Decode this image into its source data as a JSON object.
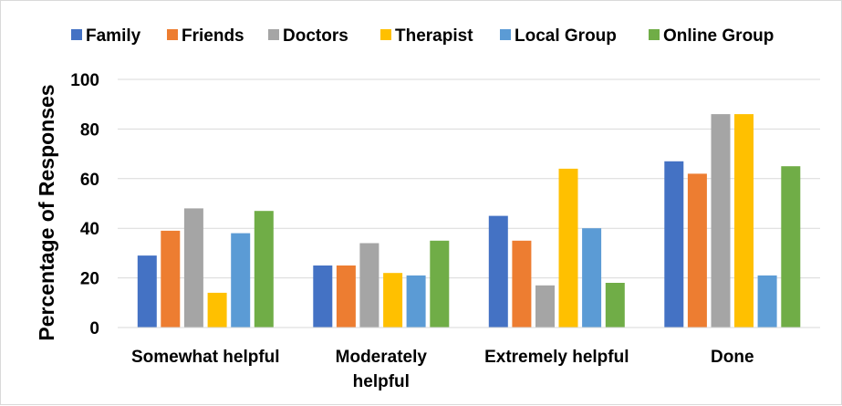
{
  "chart_data": {
    "type": "bar",
    "title": "",
    "xlabel": "",
    "ylabel": "Percentage of Responses",
    "ylim": [
      0,
      100
    ],
    "yticks": [
      "0",
      "20",
      "40",
      "60",
      "80",
      "100"
    ],
    "grid": true,
    "legend_position": "top",
    "categories": [
      [
        "Somewhat helpful"
      ],
      [
        "Moderately",
        "helpful"
      ],
      [
        "Extremely helpful"
      ],
      [
        "Done"
      ]
    ],
    "series": [
      {
        "name": "Family",
        "color": "#4472c4",
        "values": [
          29,
          25,
          45,
          67
        ]
      },
      {
        "name": "Friends",
        "color": "#ed7d31",
        "values": [
          39,
          25,
          35,
          62
        ]
      },
      {
        "name": "Doctors",
        "color": "#a5a5a5",
        "values": [
          48,
          34,
          17,
          86
        ]
      },
      {
        "name": "Therapist",
        "color": "#ffc000",
        "values": [
          14,
          22,
          64,
          86
        ]
      },
      {
        "name": "Local Group",
        "color": "#5b9bd5",
        "values": [
          38,
          21,
          40,
          21
        ]
      },
      {
        "name": "Online Group",
        "color": "#70ad47",
        "values": [
          47,
          35,
          18,
          65
        ]
      }
    ]
  }
}
